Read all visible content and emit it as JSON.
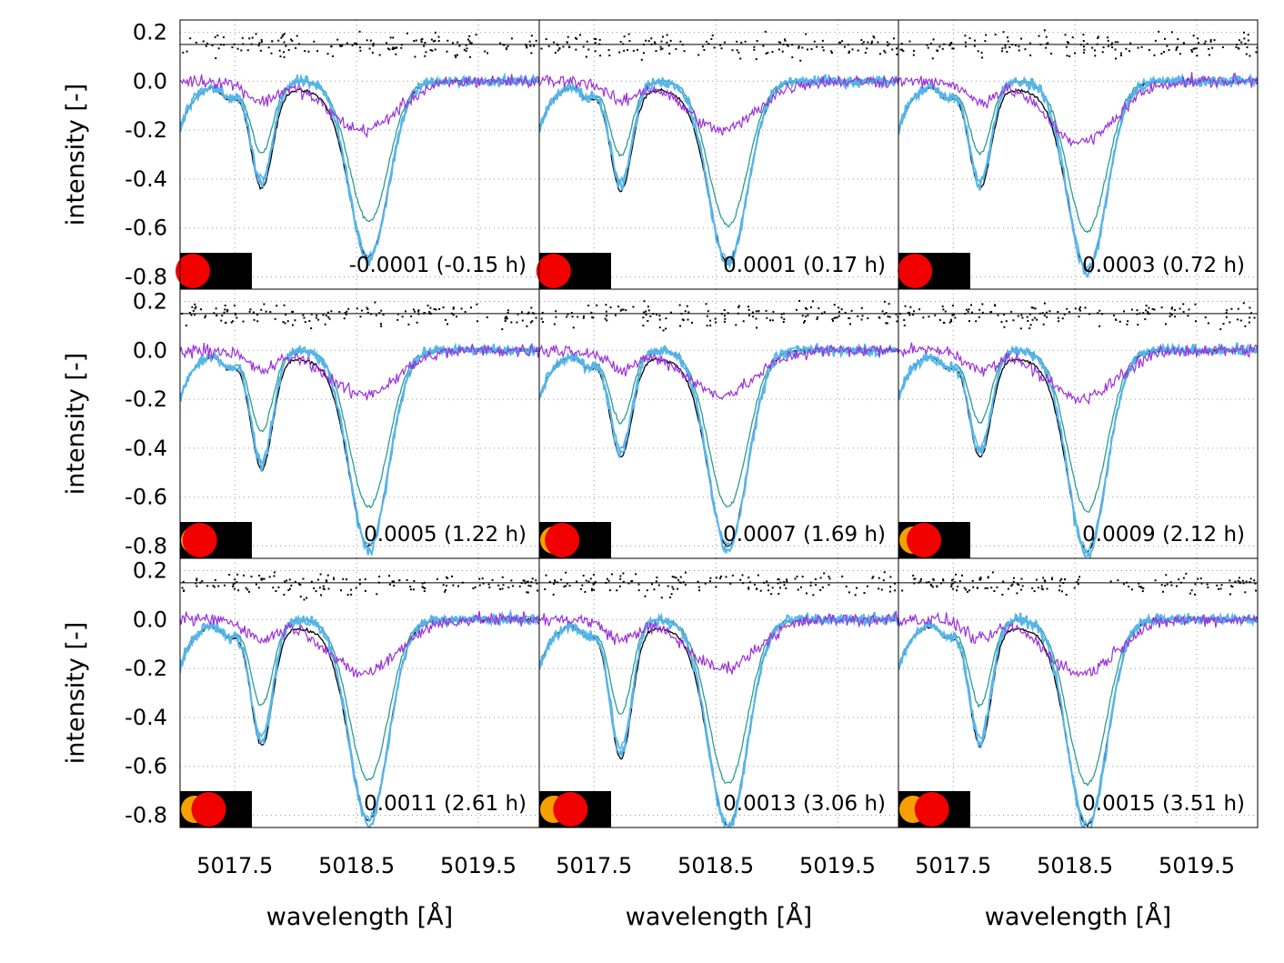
{
  "chart_data": {
    "type": "line",
    "layout": "3x3 grid of panels sharing axes",
    "ylabel": "intensity [-]",
    "xlabel": "wavelength [Å]",
    "xlim": [
      5017.05,
      5020.0
    ],
    "ylim": [
      -0.85,
      0.25
    ],
    "xticks": [
      5017.5,
      5018.5,
      5019.5
    ],
    "xtick_labels": [
      "5017.5",
      "5018.5",
      "5019.5"
    ],
    "yticks": [
      0.2,
      0.0,
      -0.2,
      -0.4,
      -0.6,
      -0.8
    ],
    "ytick_labels": [
      "0.2",
      "0.0",
      "-0.2",
      "-0.4",
      "-0.6",
      "-0.8"
    ],
    "grid": true,
    "residual_reference_level": 0.15,
    "colors": {
      "black_line": "#000000",
      "teal_line": "#2a9d8f",
      "blue_line": "#56b4e9",
      "purple_line": "#9b30d9",
      "residual_dots": "#000000",
      "star_orange": "#f5a000",
      "star_red": "#f20000",
      "inset_background": "#000000"
    },
    "series_colors": [
      "#000000",
      "#2a9d8f",
      "#56b4e9",
      "#56b4e9",
      "#9b30d9"
    ],
    "line_profile": {
      "continuum": 0.0,
      "line1_center": 5017.72,
      "line2_center": 5018.6,
      "note": "two absorption lines per panel; purple = difference spectrum, black dots = residuals around 0.15"
    },
    "panels": [
      {
        "label": "-0.0001 (-0.15 h)",
        "depth1": 0.42,
        "depth2": 0.7,
        "dip_purple": -0.2,
        "star_offset": 0.0
      },
      {
        "label": "0.0001 (0.17 h)",
        "depth1": 0.43,
        "depth2": 0.72,
        "dip_purple": -0.2,
        "star_offset": 0.05
      },
      {
        "label": "0.0003 (0.72 h)",
        "depth1": 0.42,
        "depth2": 0.75,
        "dip_purple": -0.25,
        "star_offset": 0.12
      },
      {
        "label": "0.0005 (1.22 h)",
        "depth1": 0.47,
        "depth2": 0.78,
        "dip_purple": -0.18,
        "star_offset": 0.22
      },
      {
        "label": "0.0007 (1.69 h)",
        "depth1": 0.42,
        "depth2": 0.78,
        "dip_purple": -0.18,
        "star_offset": 0.32
      },
      {
        "label": "0.0009 (2.12 h)",
        "depth1": 0.42,
        "depth2": 0.8,
        "dip_purple": -0.2,
        "star_offset": 0.4
      },
      {
        "label": "0.0011 (2.61 h)",
        "depth1": 0.5,
        "depth2": 0.8,
        "dip_purple": -0.22,
        "star_offset": 0.5
      },
      {
        "label": "0.0013 (3.06 h)",
        "depth1": 0.55,
        "depth2": 0.82,
        "dip_purple": -0.2,
        "star_offset": 0.58
      },
      {
        "label": "0.0015 (3.51 h)",
        "depth1": 0.5,
        "depth2": 0.82,
        "dip_purple": -0.22,
        "star_offset": 0.65
      }
    ]
  }
}
